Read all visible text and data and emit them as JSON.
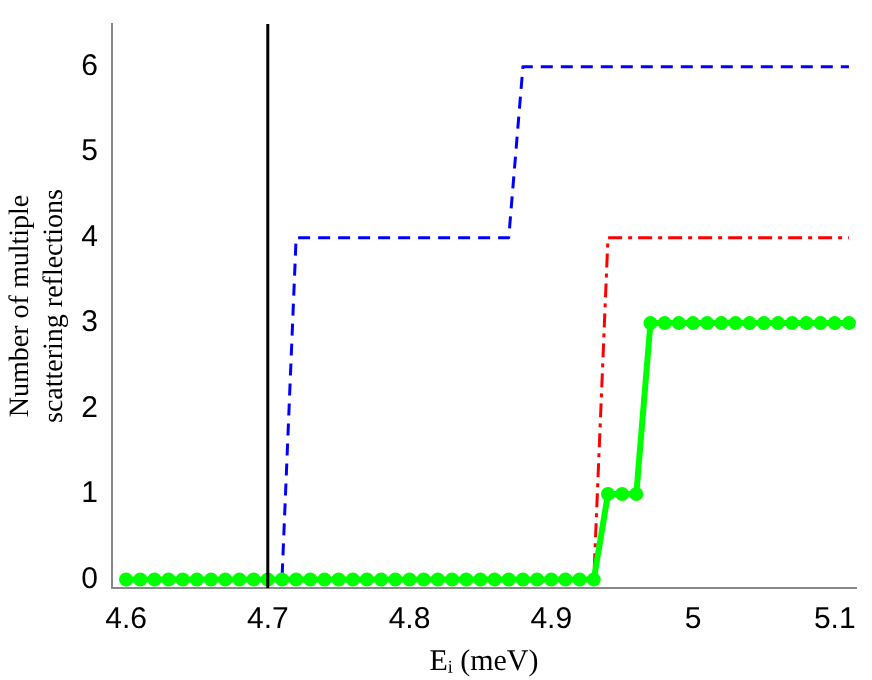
{
  "chart_data": {
    "type": "line",
    "xlabel": "Eᵢ (meV)",
    "ylabel": "Number of multiple\nscattering reflections",
    "xlim": [
      4.59,
      5.115
    ],
    "xticks": [
      4.6,
      4.7,
      4.8,
      4.9,
      5,
      5.1
    ],
    "ylim": [
      -0.1,
      6.5
    ],
    "yticks": [
      0,
      1,
      2,
      3,
      4,
      5,
      6
    ],
    "grid": false,
    "legend": false,
    "ref_lines": [
      {
        "axis": "x",
        "value": 4.7,
        "color": "#000000",
        "line_style": "solid"
      }
    ],
    "series": [
      {
        "color": "#0000ff",
        "line_style": "dashed",
        "marker": "none",
        "x": [
          4.6,
          4.71,
          4.72,
          4.87,
          4.88,
          5.11
        ],
        "values": [
          0,
          0,
          4,
          4,
          6,
          6
        ]
      },
      {
        "color": "#ff0000",
        "line_style": "dashdot",
        "marker": "none",
        "x": [
          4.6,
          4.93,
          4.94,
          5.11
        ],
        "values": [
          0,
          0,
          4,
          4
        ]
      },
      {
        "color": "#00ff00",
        "line_style": "solid",
        "marker": "circle",
        "x": [
          4.6,
          4.61,
          4.62,
          4.63,
          4.64,
          4.65,
          4.66,
          4.67,
          4.68,
          4.69,
          4.7,
          4.71,
          4.72,
          4.73,
          4.74,
          4.75,
          4.76,
          4.77,
          4.78,
          4.79,
          4.8,
          4.81,
          4.82,
          4.83,
          4.84,
          4.85,
          4.86,
          4.87,
          4.88,
          4.89,
          4.9,
          4.91,
          4.92,
          4.93,
          4.94,
          4.95,
          4.96,
          4.97,
          4.98,
          4.99,
          5,
          5.01,
          5.02,
          5.03,
          5.04,
          5.05,
          5.06,
          5.07,
          5.08,
          5.09,
          5.1,
          5.11
        ],
        "values": [
          0,
          0,
          0,
          0,
          0,
          0,
          0,
          0,
          0,
          0,
          0,
          0,
          0,
          0,
          0,
          0,
          0,
          0,
          0,
          0,
          0,
          0,
          0,
          0,
          0,
          0,
          0,
          0,
          0,
          0,
          0,
          0,
          0,
          0,
          1,
          1,
          1,
          3,
          3,
          3,
          3,
          3,
          3,
          3,
          3,
          3,
          3,
          3,
          3,
          3,
          3,
          3
        ]
      }
    ]
  }
}
